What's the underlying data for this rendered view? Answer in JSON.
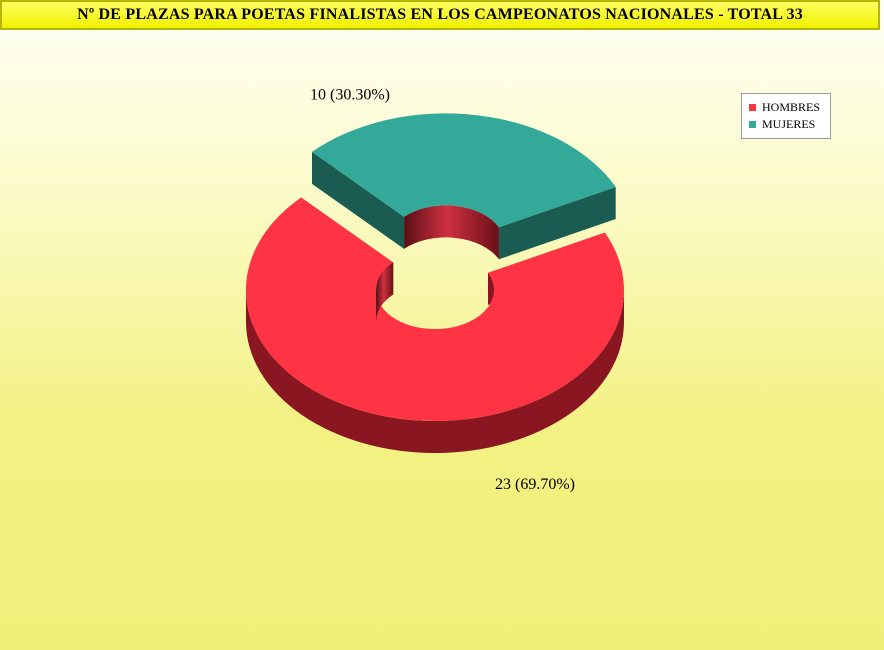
{
  "title": "Nº DE PLAZAS PARA POETAS FINALISTAS EN LOS CAMPEONATOS NACIONALES - TOTAL 33",
  "chart_data": {
    "type": "pie",
    "variant": "3d-donut-exploded",
    "title": "Nº DE PLAZAS PARA POETAS FINALISTAS EN LOS CAMPEONATOS NACIONALES - TOTAL 33",
    "total": 33,
    "legend_position": "top-right",
    "slices": [
      {
        "name": "HOMBRES",
        "value": 23,
        "percent": 69.7,
        "label": "23 (69.70%)",
        "color": "#fe3343",
        "side_color": "#8a1622"
      },
      {
        "name": "MUJERES",
        "value": 10,
        "percent": 30.3,
        "label": "10 (30.30%)",
        "color": "#33aa99",
        "side_color": "#1a5c52"
      }
    ]
  },
  "legend": {
    "items": [
      {
        "label": "HOMBRES",
        "color": "#fe3343"
      },
      {
        "label": "MUJERES",
        "color": "#33aa99"
      }
    ]
  }
}
